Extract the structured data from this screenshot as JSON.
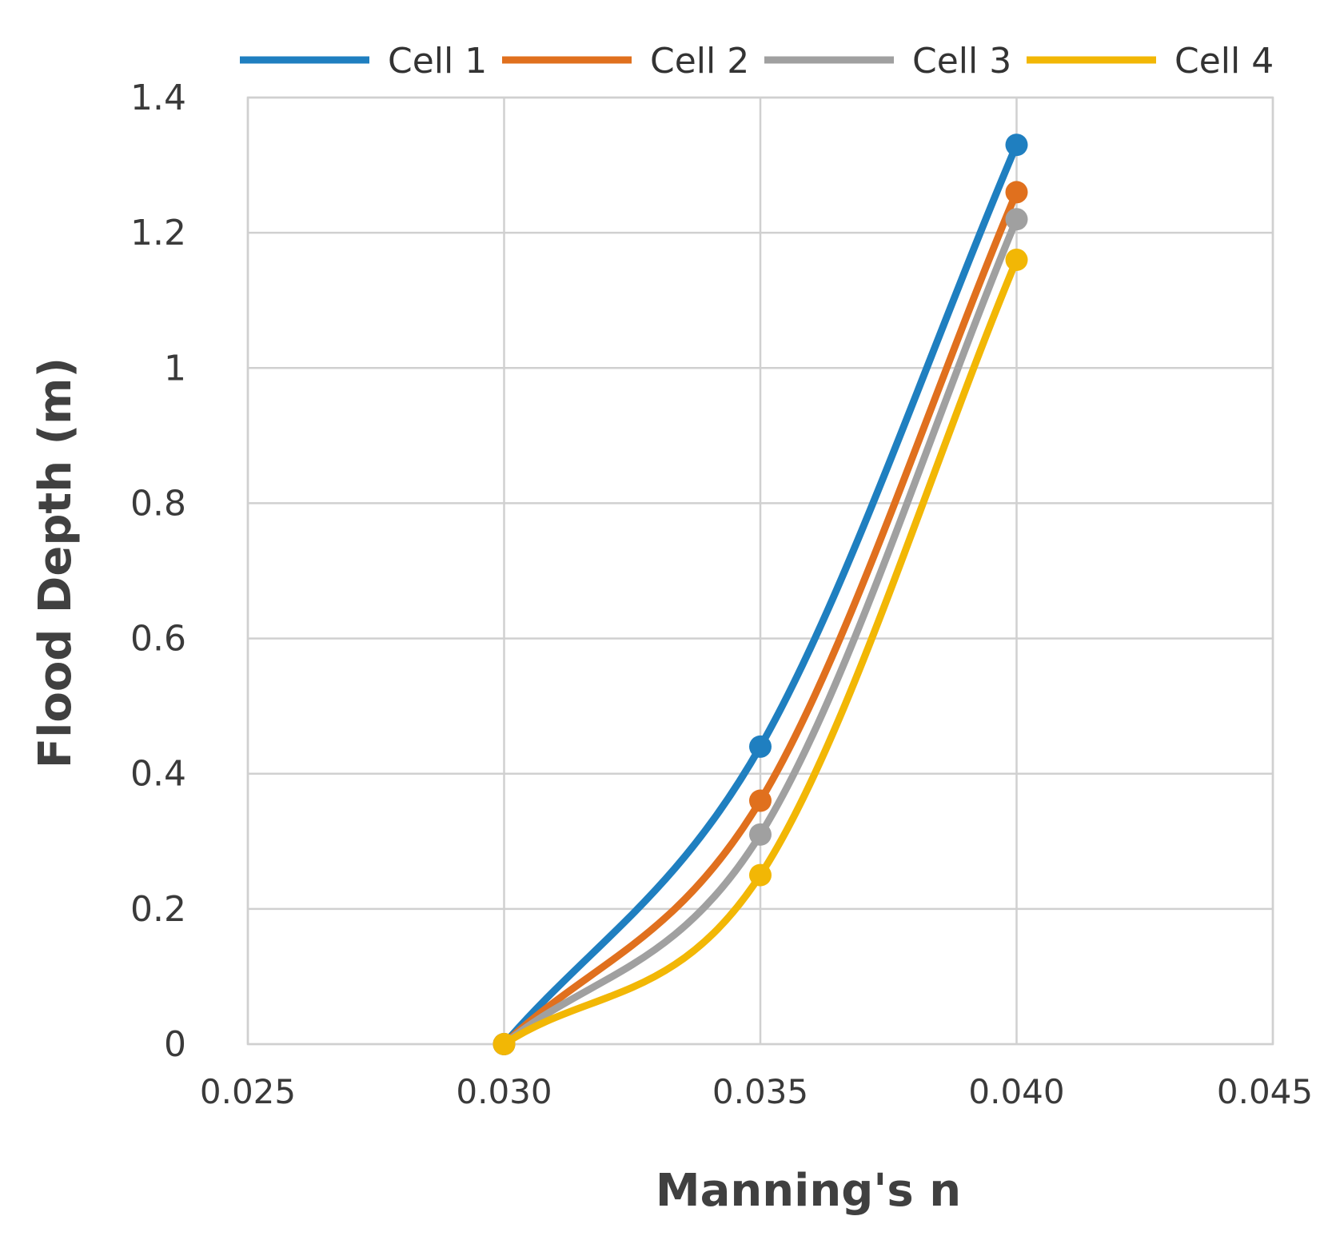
{
  "chart_data": {
    "type": "line",
    "title": "",
    "xlabel": "Manning's n",
    "ylabel": "Flood Depth (m)",
    "x": [
      0.03,
      0.035,
      0.04
    ],
    "xlim": [
      0.025,
      0.045
    ],
    "ylim": [
      0,
      1.4
    ],
    "xticks": [
      0.025,
      0.03,
      0.035,
      0.04,
      0.045
    ],
    "xtick_labels": [
      "0.025",
      "0.030",
      "0.035",
      "0.040",
      "0.045"
    ],
    "yticks": [
      0,
      0.2,
      0.4,
      0.6,
      0.8,
      1.0,
      1.2,
      1.4
    ],
    "ytick_labels": [
      "0",
      "0.2",
      "0.4",
      "0.6",
      "0.8",
      "1",
      "1.2",
      "1.4"
    ],
    "grid": true,
    "legend_position": "top",
    "smooth": true,
    "series": [
      {
        "name": "Cell 1",
        "color": "#1f7fc0",
        "values": [
          0.0,
          0.44,
          1.33
        ]
      },
      {
        "name": "Cell 2",
        "color": "#e0701e",
        "values": [
          0.0,
          0.36,
          1.26
        ]
      },
      {
        "name": "Cell 3",
        "color": "#a0a0a0",
        "values": [
          0.0,
          0.31,
          1.22
        ]
      },
      {
        "name": "Cell 4",
        "color": "#f2b705",
        "values": [
          0.0,
          0.25,
          1.16
        ]
      }
    ]
  }
}
